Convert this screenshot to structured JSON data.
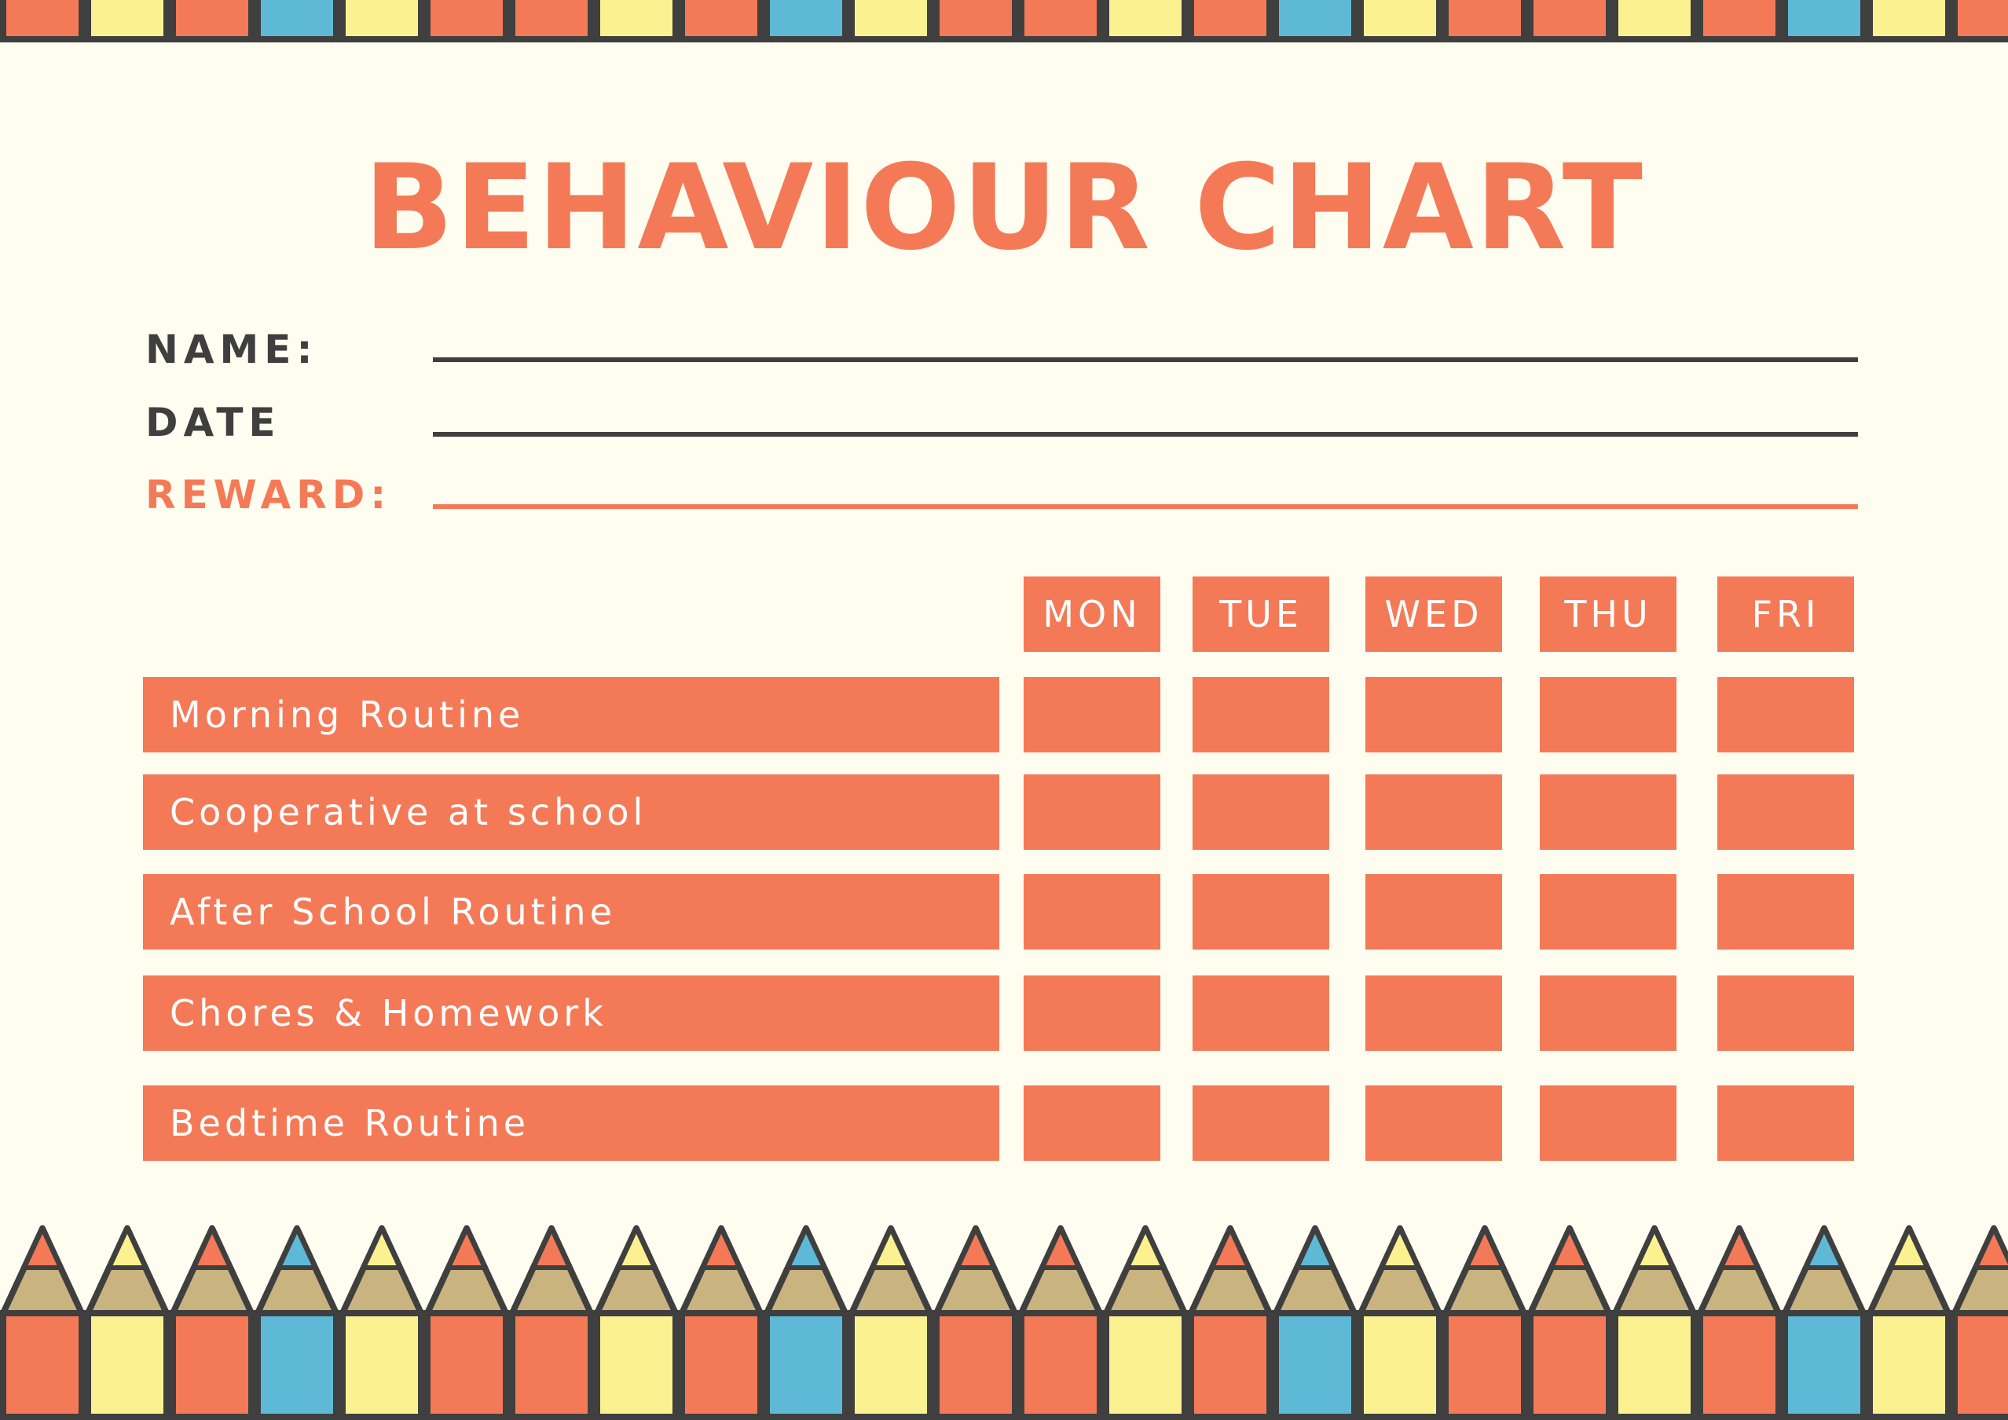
{
  "title": "BEHAVIOUR CHART",
  "form": {
    "name_label": "NAME:",
    "date_label": "DATE",
    "reward_label": "REWARD:"
  },
  "days": [
    "MON",
    "TUE",
    "WED",
    "THU",
    "FRI"
  ],
  "tasks": [
    "Morning Routine",
    "Cooperative at school",
    "After School Routine",
    "Chores & Homework",
    "Bedtime Routine"
  ],
  "colors": {
    "background": "#fefdf0",
    "accent": "#f47a57",
    "dark": "#3f3f3f",
    "yellow": "#fbf191",
    "blue": "#5eb9d6",
    "wood": "#c9b47f"
  }
}
